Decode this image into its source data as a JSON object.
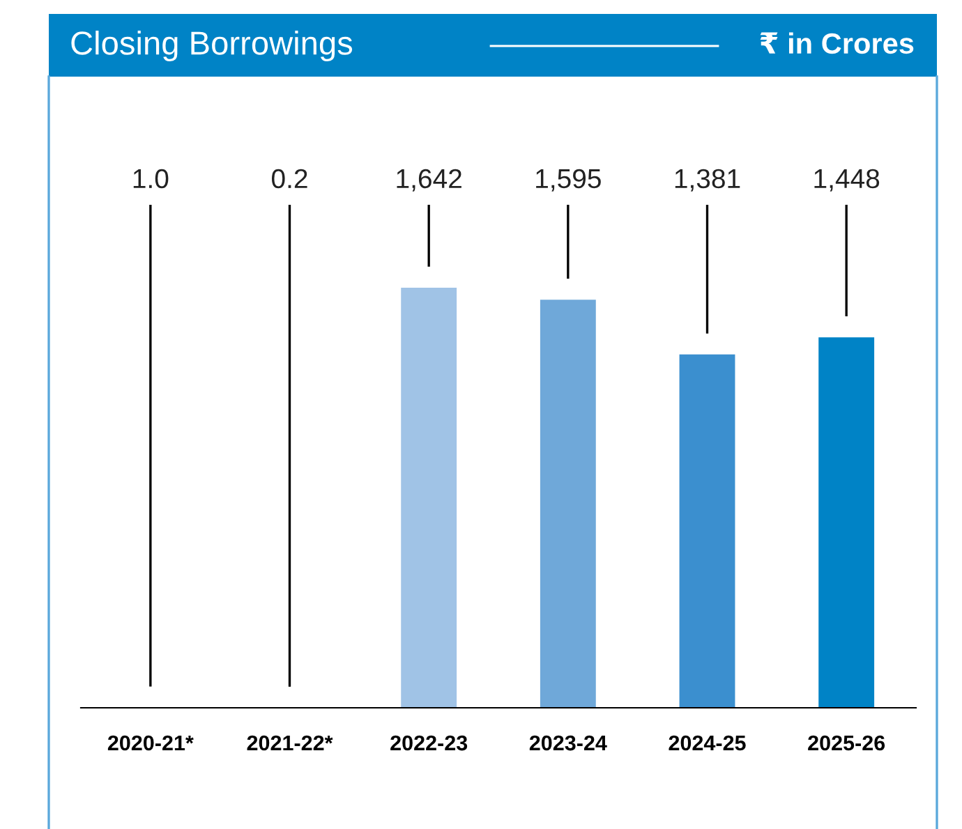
{
  "chart_data": {
    "type": "bar",
    "title": "Closing Borrowings",
    "subtitle": "₹ in Crores",
    "categories": [
      "2020-21*",
      "2021-22*",
      "2022-23",
      "2023-24",
      "2024-25",
      "2025-26"
    ],
    "values": [
      1.0,
      0.2,
      1642,
      1595,
      1381,
      1448
    ],
    "colors": [
      "#c9dcf0",
      "#a9c9ea",
      "#a0c3e6",
      "#6fa8d9",
      "#3b8fcf",
      "#0083c6"
    ],
    "value_labels": [
      "1.0",
      "0.2",
      "1,642",
      "1,595",
      "1,381",
      "1,448"
    ],
    "legend": false
  }
}
